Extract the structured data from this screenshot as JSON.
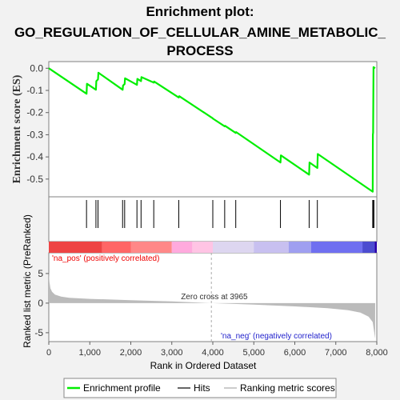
{
  "title_lines": [
    "Enrichment plot:",
    "GO_REGULATION_OF_CELLULAR_AMINE_METABOLIC_",
    "PROCESS"
  ],
  "colors": {
    "enrichment": "#00ee00",
    "hits": "#000000",
    "metric": "#bbbbbb",
    "background": "#f2f2f2",
    "panel": "#ffffff"
  },
  "chart_data": {
    "type": "line",
    "xlabel": "Rank in Ordered Dataset",
    "ylabel_top": "Enrichment score (ES)",
    "ylabel_bottom": "Ranked list metric (PreRanked)",
    "xlim": [
      0,
      8000
    ],
    "x_ticks": [
      0,
      1000,
      2000,
      3000,
      4000,
      5000,
      6000,
      7000,
      8000
    ],
    "x_tick_labels": [
      "0",
      "1,000",
      "2,000",
      "3,000",
      "4,000",
      "5,000",
      "6,000",
      "7,000",
      "8,000"
    ],
    "es_ylim": [
      -0.58,
      0.03
    ],
    "es_ticks": [
      0.0,
      -0.1,
      -0.2,
      -0.3,
      -0.4,
      -0.5
    ],
    "es_tick_labels": [
      "0.0",
      "-0.1",
      "-0.2",
      "-0.3",
      "-0.4",
      "-0.5"
    ],
    "metric_ylim": [
      -6.5,
      8.5
    ],
    "metric_ticks": [
      5,
      0,
      -5
    ],
    "metric_tick_labels": [
      "5",
      "0",
      "-5"
    ],
    "enrichment_profile": [
      [
        0,
        0.0
      ],
      [
        920,
        -0.115
      ],
      [
        930,
        -0.07
      ],
      [
        1150,
        -0.097
      ],
      [
        1160,
        -0.058
      ],
      [
        1200,
        -0.05
      ],
      [
        1210,
        -0.02
      ],
      [
        1800,
        -0.097
      ],
      [
        1810,
        -0.078
      ],
      [
        1850,
        -0.071
      ],
      [
        1860,
        -0.045
      ],
      [
        2150,
        -0.075
      ],
      [
        2160,
        -0.048
      ],
      [
        2250,
        -0.058
      ],
      [
        2260,
        -0.04
      ],
      [
        2560,
        -0.065
      ],
      [
        2570,
        -0.06
      ],
      [
        3170,
        -0.132
      ],
      [
        3180,
        -0.126
      ],
      [
        4000,
        -0.226
      ],
      [
        4010,
        -0.228
      ],
      [
        4290,
        -0.262
      ],
      [
        4300,
        -0.26
      ],
      [
        4560,
        -0.292
      ],
      [
        4570,
        -0.288
      ],
      [
        5650,
        -0.425
      ],
      [
        5660,
        -0.393
      ],
      [
        6350,
        -0.48
      ],
      [
        6360,
        -0.425
      ],
      [
        6550,
        -0.45
      ],
      [
        6560,
        -0.387
      ],
      [
        7900,
        -0.557
      ],
      [
        7905,
        -0.3
      ],
      [
        7910,
        -0.29
      ],
      [
        7920,
        0.005
      ],
      [
        7960,
        0.0
      ]
    ],
    "hits": [
      920,
      1150,
      1200,
      1800,
      1850,
      2150,
      2250,
      2560,
      3170,
      4000,
      4290,
      4560,
      5650,
      6350,
      6550,
      7900,
      7920,
      7930
    ],
    "metric_curve": [
      [
        0,
        5.3
      ],
      [
        15,
        3.6
      ],
      [
        40,
        2.5
      ],
      [
        80,
        1.9
      ],
      [
        150,
        1.45
      ],
      [
        300,
        1.1
      ],
      [
        500,
        0.9
      ],
      [
        1000,
        0.72
      ],
      [
        2000,
        0.5
      ],
      [
        3000,
        0.28
      ],
      [
        3965,
        0.0
      ],
      [
        5000,
        -0.25
      ],
      [
        6000,
        -0.55
      ],
      [
        6800,
        -0.85
      ],
      [
        7300,
        -1.2
      ],
      [
        7600,
        -1.6
      ],
      [
        7800,
        -2.3
      ],
      [
        7900,
        -3.2
      ],
      [
        7960,
        -6.0
      ]
    ],
    "annotations": {
      "zero_cross": "Zero cross at 3965",
      "zero_cross_x": 3965,
      "na_pos": "'na_pos' (positively correlated)",
      "na_neg": "'na_neg' (negatively correlated)"
    },
    "heatmap_colors": [
      "#ee4444",
      "#ff6666",
      "#ff8888",
      "#ffaadd",
      "#ffc4e4",
      "#ddd6f0",
      "#c8c0f0",
      "#9f9ff0",
      "#6f6ff0",
      "#4c4cd0",
      "#2a00aa"
    ],
    "heatmap_breaks": [
      0,
      1300,
      2000,
      3000,
      3500,
      4000,
      5000,
      5850,
      6400,
      7650,
      7950,
      8000
    ],
    "legend": [
      {
        "label": "Enrichment profile",
        "kind": "enrichment"
      },
      {
        "label": "Hits",
        "kind": "hits"
      },
      {
        "label": "Ranking metric scores",
        "kind": "metric"
      }
    ]
  }
}
